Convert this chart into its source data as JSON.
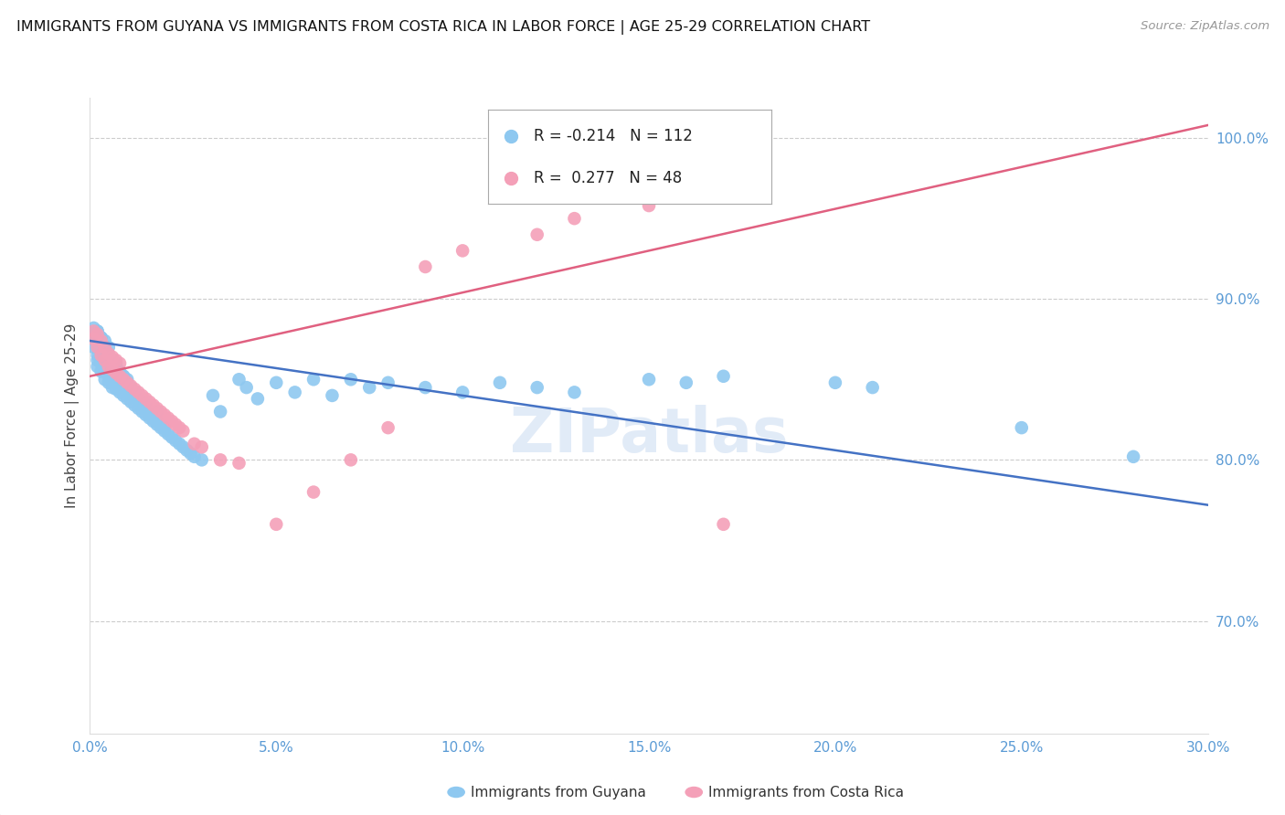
{
  "title": "IMMIGRANTS FROM GUYANA VS IMMIGRANTS FROM COSTA RICA IN LABOR FORCE | AGE 25-29 CORRELATION CHART",
  "source": "Source: ZipAtlas.com",
  "ylabel": "In Labor Force | Age 25-29",
  "watermark": "ZIPatlas",
  "legend_box_guyana": "R = -0.214   N = 112",
  "legend_box_costarica": "R =  0.277   N = 48",
  "bottom_legend": [
    "Immigrants from Guyana",
    "Immigrants from Costa Rica"
  ],
  "xlim": [
    0.0,
    0.3
  ],
  "ylim": [
    0.63,
    1.025
  ],
  "yticks": [
    0.7,
    0.8,
    0.9,
    1.0
  ],
  "ytick_labels": [
    "70.0%",
    "80.0%",
    "90.0%",
    "100.0%"
  ],
  "xticks": [
    0.0,
    0.05,
    0.1,
    0.15,
    0.2,
    0.25,
    0.3
  ],
  "xtick_labels": [
    "0.0%",
    "5.0%",
    "10.0%",
    "15.0%",
    "20.0%",
    "25.0%",
    "30.0%"
  ],
  "blue_color": "#8ec8f0",
  "pink_color": "#f4a0b8",
  "blue_line_color": "#4472c4",
  "pink_line_color": "#e06080",
  "axis_tick_color": "#5b9bd5",
  "grid_color": "#cccccc",
  "blue_scatter_x": [
    0.001,
    0.001,
    0.001,
    0.002,
    0.002,
    0.002,
    0.002,
    0.002,
    0.002,
    0.003,
    0.003,
    0.003,
    0.003,
    0.003,
    0.003,
    0.004,
    0.004,
    0.004,
    0.004,
    0.005,
    0.005,
    0.005,
    0.005,
    0.005,
    0.006,
    0.006,
    0.006,
    0.006,
    0.007,
    0.007,
    0.007,
    0.007,
    0.008,
    0.008,
    0.008,
    0.009,
    0.009,
    0.009,
    0.01,
    0.01,
    0.01,
    0.011,
    0.011,
    0.012,
    0.012,
    0.013,
    0.013,
    0.014,
    0.014,
    0.015,
    0.015,
    0.016,
    0.017,
    0.018,
    0.018,
    0.019,
    0.02,
    0.021,
    0.022,
    0.023,
    0.024,
    0.025,
    0.026,
    0.027,
    0.028,
    0.03,
    0.033,
    0.035,
    0.04,
    0.042,
    0.045,
    0.05,
    0.055,
    0.06,
    0.065,
    0.07,
    0.075,
    0.08,
    0.09,
    0.1,
    0.11,
    0.12,
    0.13,
    0.15,
    0.16,
    0.17,
    0.2,
    0.21,
    0.25,
    0.28,
    0.001,
    0.001,
    0.002,
    0.002,
    0.003,
    0.003,
    0.004,
    0.004,
    0.005,
    0.006,
    0.007,
    0.008,
    0.009,
    0.01,
    0.011,
    0.012,
    0.013,
    0.014,
    0.015,
    0.016,
    0.018,
    0.02
  ],
  "blue_scatter_y": [
    0.87,
    0.875,
    0.878,
    0.865,
    0.87,
    0.858,
    0.862,
    0.874,
    0.88,
    0.855,
    0.86,
    0.862,
    0.868,
    0.872,
    0.876,
    0.85,
    0.856,
    0.864,
    0.87,
    0.848,
    0.852,
    0.858,
    0.864,
    0.87,
    0.845,
    0.85,
    0.856,
    0.862,
    0.844,
    0.848,
    0.854,
    0.86,
    0.842,
    0.848,
    0.854,
    0.84,
    0.846,
    0.852,
    0.838,
    0.844,
    0.85,
    0.836,
    0.842,
    0.834,
    0.84,
    0.832,
    0.838,
    0.83,
    0.836,
    0.828,
    0.834,
    0.826,
    0.824,
    0.822,
    0.83,
    0.82,
    0.818,
    0.816,
    0.814,
    0.812,
    0.81,
    0.808,
    0.806,
    0.804,
    0.802,
    0.8,
    0.84,
    0.83,
    0.85,
    0.845,
    0.838,
    0.848,
    0.842,
    0.85,
    0.84,
    0.85,
    0.845,
    0.848,
    0.845,
    0.842,
    0.848,
    0.845,
    0.842,
    0.85,
    0.848,
    0.852,
    0.848,
    0.845,
    0.82,
    0.802,
    0.878,
    0.882,
    0.875,
    0.88,
    0.872,
    0.876,
    0.868,
    0.874,
    0.865,
    0.862,
    0.858,
    0.855,
    0.852,
    0.848,
    0.845,
    0.842,
    0.838,
    0.835,
    0.832,
    0.828,
    0.824,
    0.82
  ],
  "pink_scatter_x": [
    0.001,
    0.001,
    0.002,
    0.002,
    0.003,
    0.003,
    0.004,
    0.004,
    0.005,
    0.005,
    0.006,
    0.006,
    0.007,
    0.007,
    0.008,
    0.008,
    0.009,
    0.01,
    0.011,
    0.012,
    0.013,
    0.014,
    0.015,
    0.016,
    0.017,
    0.018,
    0.019,
    0.02,
    0.021,
    0.022,
    0.023,
    0.024,
    0.025,
    0.028,
    0.03,
    0.035,
    0.04,
    0.05,
    0.06,
    0.07,
    0.08,
    0.09,
    0.1,
    0.12,
    0.13,
    0.15,
    0.16,
    0.17
  ],
  "pink_scatter_y": [
    0.875,
    0.88,
    0.87,
    0.878,
    0.865,
    0.874,
    0.862,
    0.87,
    0.858,
    0.866,
    0.856,
    0.864,
    0.854,
    0.862,
    0.852,
    0.86,
    0.85,
    0.848,
    0.846,
    0.844,
    0.842,
    0.84,
    0.838,
    0.836,
    0.834,
    0.832,
    0.83,
    0.828,
    0.826,
    0.824,
    0.822,
    0.82,
    0.818,
    0.81,
    0.808,
    0.8,
    0.798,
    0.76,
    0.78,
    0.8,
    0.82,
    0.92,
    0.93,
    0.94,
    0.95,
    0.958,
    0.965,
    0.76
  ],
  "blue_trend_x": [
    0.0,
    0.3
  ],
  "blue_trend_y": [
    0.874,
    0.772
  ],
  "pink_trend_x": [
    0.0,
    0.3
  ],
  "pink_trend_y": [
    0.852,
    1.008
  ]
}
